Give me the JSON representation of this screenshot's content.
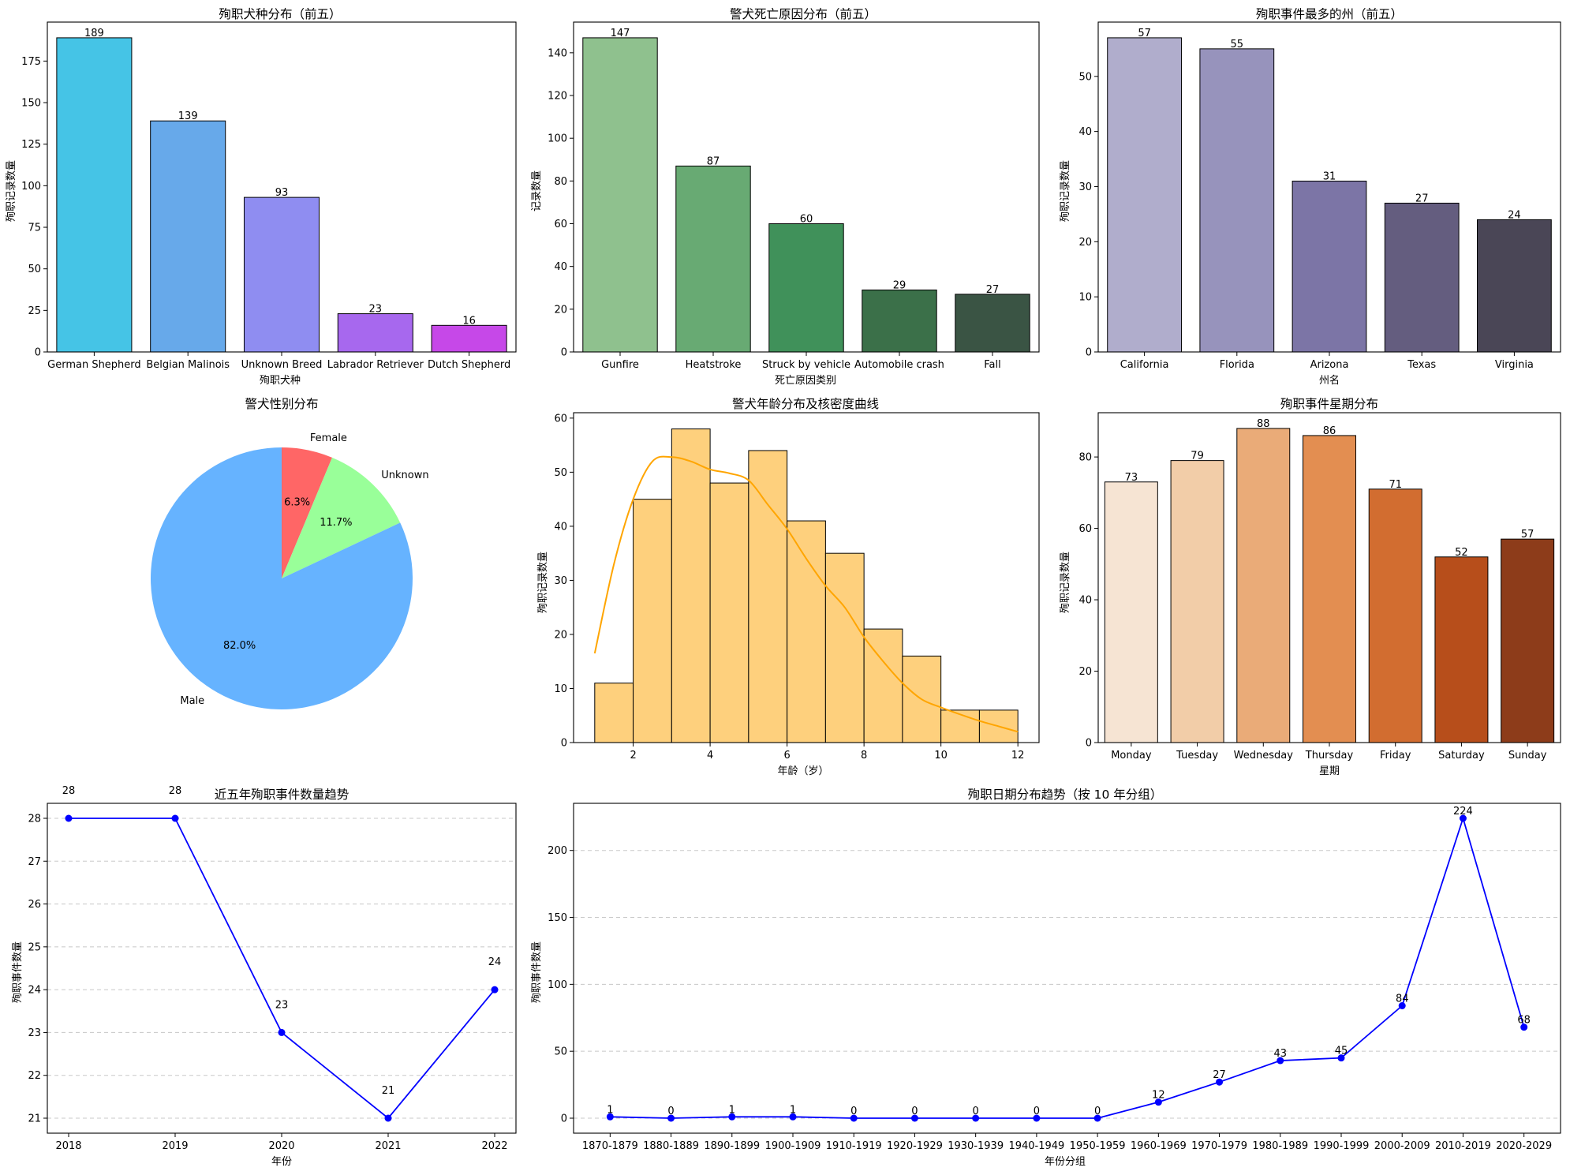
{
  "chart_data": [
    {
      "id": "breed",
      "type": "bar",
      "title": "殉职犬种分布（前五）",
      "xlabel": "殉职犬种",
      "ylabel": "殉职记录数量",
      "categories": [
        "German Shepherd",
        "Belgian Malinois",
        "Unknown Breed",
        "Labrador Retriever",
        "Dutch Shepherd"
      ],
      "values": [
        189,
        139,
        93,
        23,
        16
      ],
      "colors": [
        "#45c4e6",
        "#67a9ea",
        "#8f8df1",
        "#a768ee",
        "#c648e8"
      ],
      "ylim": [
        0,
        198.45
      ],
      "yticks": [
        0,
        25,
        50,
        75,
        100,
        125,
        150,
        175
      ]
    },
    {
      "id": "cause",
      "type": "bar",
      "title": "警犬死亡原因分布（前五）",
      "xlabel": "死亡原因类别",
      "ylabel": "记录数量",
      "categories": [
        "Gunfire",
        "Heatstroke",
        "Struck by vehicle",
        "Automobile crash",
        "Fall"
      ],
      "values": [
        147,
        87,
        60,
        29,
        27
      ],
      "colors": [
        "#8fc18e",
        "#68aa73",
        "#40915a",
        "#3b7049",
        "#3a5444"
      ],
      "ylim": [
        0,
        154.35
      ],
      "yticks": [
        0,
        20,
        40,
        60,
        80,
        100,
        120,
        140
      ]
    },
    {
      "id": "state",
      "type": "bar",
      "title": "殉职事件最多的州（前五）",
      "xlabel": "州名",
      "ylabel": "殉职记录数量",
      "categories": [
        "California",
        "Florida",
        "Arizona",
        "Texas",
        "Virginia"
      ],
      "values": [
        57,
        55,
        31,
        27,
        24
      ],
      "colors": [
        "#b0adcc",
        "#9793bc",
        "#7c75a6",
        "#645d7f",
        "#4a4656"
      ],
      "ylim": [
        0,
        59.85
      ],
      "yticks": [
        0,
        10,
        20,
        30,
        40,
        50
      ]
    },
    {
      "id": "gender",
      "type": "pie",
      "title": "警犬性别分布",
      "labels": [
        "Male",
        "Female",
        "Unknown"
      ],
      "values": [
        82.0,
        6.3,
        11.7
      ],
      "pct_labels": [
        "82.0%",
        "6.3%",
        "11.7%"
      ],
      "colors": [
        "#66b3ff",
        "#ff6666",
        "#99ff99"
      ],
      "startangle": 90
    },
    {
      "id": "age",
      "type": "bar",
      "title": "警犬年龄分布及核密度曲线",
      "xlabel": "年龄（岁）",
      "ylabel": "殉职记录数量",
      "bin_edges": [
        1,
        2,
        3,
        4,
        5,
        6,
        7,
        8,
        9,
        10,
        11,
        12
      ],
      "counts": [
        11,
        45,
        58,
        48,
        54,
        41,
        35,
        21,
        16,
        6,
        6
      ],
      "kde": [
        [
          1,
          16.5
        ],
        [
          1.5,
          33
        ],
        [
          2,
          45
        ],
        [
          2.5,
          52
        ],
        [
          3,
          52.8
        ],
        [
          3.5,
          52
        ],
        [
          4,
          50.5
        ],
        [
          4.5,
          49.8
        ],
        [
          5,
          48.5
        ],
        [
          5.5,
          44
        ],
        [
          6,
          39.5
        ],
        [
          6.5,
          34
        ],
        [
          7,
          29
        ],
        [
          7.5,
          25
        ],
        [
          8,
          19.5
        ],
        [
          8.5,
          15
        ],
        [
          9,
          11
        ],
        [
          9.5,
          8
        ],
        [
          10,
          6.5
        ],
        [
          10.5,
          5.2
        ],
        [
          11,
          4
        ],
        [
          11.5,
          3
        ],
        [
          12,
          2
        ]
      ],
      "fill_color": "#fed07d",
      "kde_color": "#ffa500",
      "xlim": [
        0.45,
        12.55
      ],
      "ylim": [
        0,
        61
      ],
      "xticks": [
        2,
        4,
        6,
        8,
        10,
        12
      ],
      "yticks": [
        0,
        10,
        20,
        30,
        40,
        50,
        60
      ]
    },
    {
      "id": "weekday",
      "type": "bar",
      "title": "殉职事件星期分布",
      "xlabel": "星期",
      "ylabel": "殉职记录数量",
      "categories": [
        "Monday",
        "Tuesday",
        "Wednesday",
        "Thursday",
        "Friday",
        "Saturday",
        "Sunday"
      ],
      "values": [
        73,
        79,
        88,
        86,
        71,
        52,
        57
      ],
      "colors": [
        "#f6e4d3",
        "#f2cda8",
        "#eaab78",
        "#e38e51",
        "#d26d30",
        "#b74e1b",
        "#8d3c1a"
      ],
      "ylim": [
        0,
        92.4
      ],
      "yticks": [
        0,
        20,
        40,
        60,
        80
      ]
    },
    {
      "id": "recent",
      "type": "line",
      "title": "近五年殉职事件数量趋势",
      "xlabel": "年份",
      "ylabel": "殉职事件数量",
      "x": [
        "2018",
        "2019",
        "2020",
        "2021",
        "2022"
      ],
      "values": [
        28,
        28,
        23,
        21,
        24
      ],
      "color": "#0000ff",
      "ylim": [
        20.65,
        28.35
      ],
      "yticks": [
        21,
        22,
        23,
        24,
        25,
        26,
        27,
        28
      ],
      "grid": true
    },
    {
      "id": "decade",
      "type": "line",
      "title": "殉职日期分布趋势（按 10 年分组）",
      "xlabel": "年份分组",
      "ylabel": "殉职事件数量",
      "x": [
        "1870-1879",
        "1880-1889",
        "1890-1899",
        "1900-1909",
        "1910-1919",
        "1920-1929",
        "1930-1939",
        "1940-1949",
        "1950-1959",
        "1960-1969",
        "1970-1979",
        "1980-1989",
        "1990-1999",
        "2000-2009",
        "2010-2019",
        "2020-2029"
      ],
      "values": [
        1,
        0,
        1,
        1,
        0,
        0,
        0,
        0,
        0,
        12,
        27,
        43,
        45,
        84,
        224,
        68
      ],
      "color": "#0000ff",
      "ylim": [
        -11.2,
        235.2
      ],
      "yticks": [
        0,
        50,
        100,
        150,
        200
      ],
      "grid": true
    }
  ]
}
